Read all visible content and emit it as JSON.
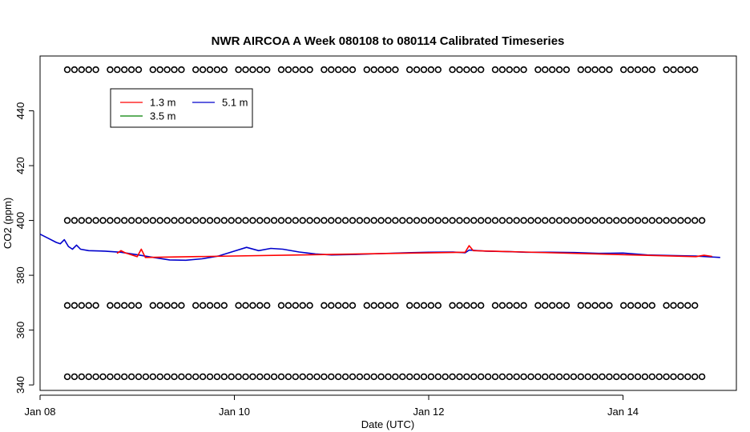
{
  "chart_data": {
    "type": "line",
    "title": "NWR AIRCOA A  Week 080108 to 080114  Calibrated Timeseries",
    "xlabel": "Date (UTC)",
    "ylabel": "CO2 (ppm)",
    "xlim": [
      "2008-01-08T00:00",
      "2008-01-15T04:00"
    ],
    "ylim": [
      338,
      460
    ],
    "xticks": [
      {
        "date": "2008-01-08",
        "label": "Jan 08"
      },
      {
        "date": "2008-01-10",
        "label": "Jan 10"
      },
      {
        "date": "2008-01-12",
        "label": "Jan 12"
      },
      {
        "date": "2008-01-14",
        "label": "Jan 14"
      }
    ],
    "yticks": [
      340,
      360,
      380,
      400,
      420,
      440
    ],
    "grid": false,
    "legend": {
      "position": "top-left",
      "entries": [
        {
          "name": "1.3 m",
          "color": "#ff0000"
        },
        {
          "name": "5.1 m",
          "color": "#0000cc"
        },
        {
          "name": "3.5 m",
          "color": "#008000"
        }
      ]
    },
    "series": [
      {
        "name": "5.1 m",
        "color": "#0000cc",
        "points": [
          [
            "2008-01-08T00:00",
            395.0
          ],
          [
            "2008-01-08T02:00",
            393.5
          ],
          [
            "2008-01-08T04:00",
            392.0
          ],
          [
            "2008-01-08T05:00",
            391.5
          ],
          [
            "2008-01-08T06:00",
            393.0
          ],
          [
            "2008-01-08T07:00",
            390.5
          ],
          [
            "2008-01-08T08:00",
            389.5
          ],
          [
            "2008-01-08T09:00",
            391.0
          ],
          [
            "2008-01-08T10:00",
            389.5
          ],
          [
            "2008-01-08T12:00",
            389.0
          ],
          [
            "2008-01-08T16:00",
            388.8
          ],
          [
            "2008-01-08T20:00",
            388.4
          ],
          [
            "2008-01-09T00:00",
            387.5
          ],
          [
            "2008-01-09T04:00",
            386.5
          ],
          [
            "2008-01-09T08:00",
            385.6
          ],
          [
            "2008-01-09T12:00",
            385.5
          ],
          [
            "2008-01-09T16:00",
            386.0
          ],
          [
            "2008-01-09T20:00",
            387.0
          ],
          [
            "2008-01-10T00:00",
            388.8
          ],
          [
            "2008-01-10T03:00",
            390.2
          ],
          [
            "2008-01-10T06:00",
            389.0
          ],
          [
            "2008-01-10T09:00",
            389.8
          ],
          [
            "2008-01-10T12:00",
            389.5
          ],
          [
            "2008-01-10T16:00",
            388.5
          ],
          [
            "2008-01-10T20:00",
            387.8
          ],
          [
            "2008-01-11T00:00",
            387.4
          ],
          [
            "2008-01-11T06:00",
            387.6
          ],
          [
            "2008-01-11T12:00",
            387.9
          ],
          [
            "2008-01-11T18:00",
            388.2
          ],
          [
            "2008-01-12T00:00",
            388.4
          ],
          [
            "2008-01-12T06:00",
            388.5
          ],
          [
            "2008-01-12T09:00",
            388.2
          ],
          [
            "2008-01-12T10:00",
            389.2
          ],
          [
            "2008-01-12T14:00",
            388.8
          ],
          [
            "2008-01-12T20:00",
            388.6
          ],
          [
            "2008-01-13T00:00",
            388.4
          ],
          [
            "2008-01-13T06:00",
            388.4
          ],
          [
            "2008-01-13T12:00",
            388.3
          ],
          [
            "2008-01-13T18:00",
            388.0
          ],
          [
            "2008-01-14T00:00",
            388.1
          ],
          [
            "2008-01-14T06:00",
            387.4
          ],
          [
            "2008-01-14T12:00",
            387.2
          ],
          [
            "2008-01-14T18:00",
            387.0
          ],
          [
            "2008-01-15T00:00",
            386.5
          ]
        ]
      },
      {
        "name": "1.3 m",
        "color": "#ff0000",
        "points": [
          [
            "2008-01-08T19:00",
            388.0
          ],
          [
            "2008-01-08T20:00",
            389.0
          ],
          [
            "2008-01-08T21:00",
            388.2
          ],
          [
            "2008-01-09T00:00",
            386.8
          ],
          [
            "2008-01-09T01:00",
            389.5
          ],
          [
            "2008-01-09T02:00",
            386.5
          ],
          [
            "2008-01-12T09:00",
            388.4
          ],
          [
            "2008-01-12T10:00",
            390.8
          ],
          [
            "2008-01-12T11:00",
            389.0
          ],
          [
            "2008-01-14T18:00",
            386.8
          ],
          [
            "2008-01-14T20:00",
            387.3
          ],
          [
            "2008-01-14T22:00",
            386.9
          ]
        ]
      },
      {
        "name": "3.5 m",
        "color": "#008000",
        "points": []
      }
    ],
    "marker_rows": [
      {
        "y": 455.0,
        "marker": "o",
        "color": "#000000"
      },
      {
        "y": 400.0,
        "marker": "o",
        "color": "#000000"
      },
      {
        "y": 369.0,
        "marker": "o",
        "color": "#000000"
      },
      {
        "y": 343.0,
        "marker": "o",
        "color": "#000000"
      }
    ]
  }
}
